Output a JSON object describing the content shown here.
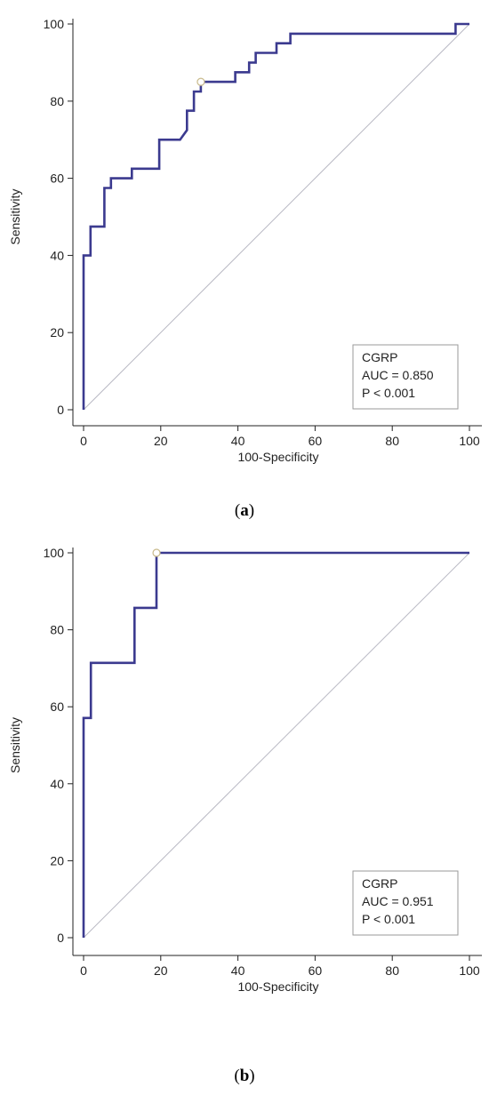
{
  "chart_data": [
    {
      "type": "line",
      "panel_label": "a",
      "xlabel": "100-Specificity",
      "ylabel": "Sensitivity",
      "xlim": [
        0,
        100
      ],
      "ylim": [
        0,
        100
      ],
      "xticks": [
        0,
        20,
        40,
        60,
        80,
        100
      ],
      "yticks": [
        0,
        20,
        40,
        60,
        80,
        100
      ],
      "legend": {
        "position": "bottom-right",
        "lines": [
          "CGRP",
          "AUC = 0.850",
          "P < 0.001"
        ]
      },
      "colors": {
        "curve": "#3b3a8f",
        "diagonal": "#b9b9c4",
        "point": "#c8b98a"
      },
      "optimal_point": {
        "x": 30.4,
        "y": 85.0
      },
      "series": [
        {
          "x": [
            0,
            0,
            1.8,
            1.8,
            5.4,
            5.4,
            7.1,
            7.1,
            12.5,
            12.5,
            19.6,
            19.6,
            25.0,
            26.8,
            26.8,
            28.6,
            28.6,
            30.4,
            30.4,
            39.3,
            39.3,
            42.9,
            42.9,
            44.6,
            44.6,
            50.0,
            50.0,
            53.6,
            53.6,
            96.4,
            96.4,
            100
          ],
          "y": [
            0,
            40.0,
            40.0,
            47.5,
            47.5,
            57.5,
            57.5,
            60.0,
            60.0,
            62.5,
            62.5,
            70.0,
            70.0,
            72.5,
            77.5,
            77.5,
            82.5,
            82.5,
            85.0,
            85.0,
            87.5,
            87.5,
            90.0,
            90.0,
            92.5,
            92.5,
            95.0,
            95.0,
            97.5,
            97.5,
            100,
            100
          ]
        }
      ]
    },
    {
      "type": "line",
      "panel_label": "b",
      "xlabel": "100-Specificity",
      "ylabel": "Sensitivity",
      "xlim": [
        0,
        100
      ],
      "ylim": [
        0,
        100
      ],
      "xticks": [
        0,
        20,
        40,
        60,
        80,
        100
      ],
      "yticks": [
        0,
        20,
        40,
        60,
        80,
        100
      ],
      "legend": {
        "position": "bottom-right",
        "lines": [
          "CGRP",
          "AUC = 0.951",
          "P < 0.001"
        ]
      },
      "colors": {
        "curve": "#3b3a8f",
        "diagonal": "#b9b9c4",
        "point": "#c8b98a"
      },
      "optimal_point": {
        "x": 18.9,
        "y": 100
      },
      "series": [
        {
          "x": [
            0,
            0,
            1.9,
            1.9,
            13.2,
            13.2,
            18.9,
            18.9,
            100
          ],
          "y": [
            0,
            57.1,
            57.1,
            71.4,
            71.4,
            85.7,
            85.7,
            100,
            100
          ]
        }
      ]
    }
  ]
}
